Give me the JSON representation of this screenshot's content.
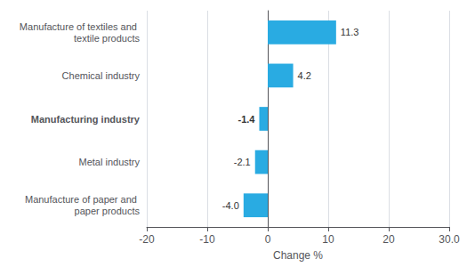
{
  "chart_data": {
    "type": "bar",
    "orientation": "horizontal",
    "categories": [
      "Manufacture of paper and paper products",
      "Metal industry",
      "Manufacturing industry",
      "Chemical industry",
      "Manufacture of textiles and textile products"
    ],
    "values": [
      -4.0,
      -2.1,
      -1.4,
      4.2,
      11.3
    ],
    "value_labels": [
      "-4.0",
      "-2.1",
      "-1.4",
      "4.2",
      "11.3"
    ],
    "data_labels": true,
    "color": "#29abe2",
    "xlabel": "Change %",
    "xlim": [
      -20,
      30
    ],
    "xticks": [
      -20,
      -10,
      0,
      10,
      20,
      {
        "value": 30,
        "label": "30.0"
      }
    ],
    "grid": true
  }
}
